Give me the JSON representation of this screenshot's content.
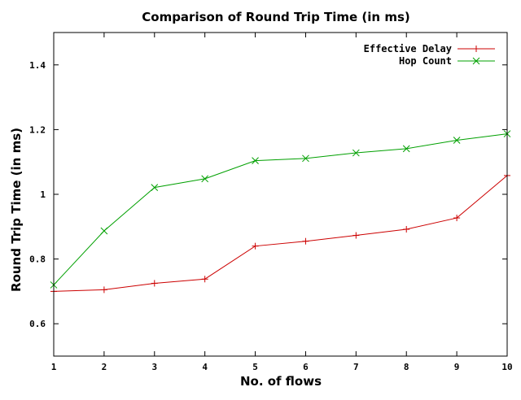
{
  "chart_data": {
    "type": "line",
    "title": "Comparison of Round Trip Time (in ms)",
    "xlabel": "No. of flows",
    "ylabel": "Round Trip Time (in ms)",
    "x": [
      1,
      2,
      3,
      4,
      5,
      6,
      7,
      8,
      9,
      10
    ],
    "xlim": [
      1,
      10
    ],
    "ylim": [
      0.5,
      1.5
    ],
    "xticks": [
      "1",
      "2",
      "3",
      "4",
      "5",
      "6",
      "7",
      "8",
      "9",
      "10"
    ],
    "yticks": [
      {
        "value": 0.6,
        "label": "0.6"
      },
      {
        "value": 0.8,
        "label": "0.8"
      },
      {
        "value": 1.0,
        "label": "1"
      },
      {
        "value": 1.2,
        "label": "1.2"
      },
      {
        "value": 1.4,
        "label": "1.4"
      }
    ],
    "grid": false,
    "legend_position": "top-right",
    "series": [
      {
        "name": "Effective Delay",
        "color": "#cc0000",
        "marker": "plus",
        "values": [
          0.7,
          0.705,
          0.725,
          0.738,
          0.84,
          0.855,
          0.873,
          0.892,
          0.927,
          1.058
        ]
      },
      {
        "name": "Hop Count",
        "color": "#00a000",
        "marker": "cross",
        "values": [
          0.72,
          0.887,
          1.021,
          1.048,
          1.104,
          1.111,
          1.128,
          1.141,
          1.167,
          1.187
        ]
      }
    ]
  }
}
